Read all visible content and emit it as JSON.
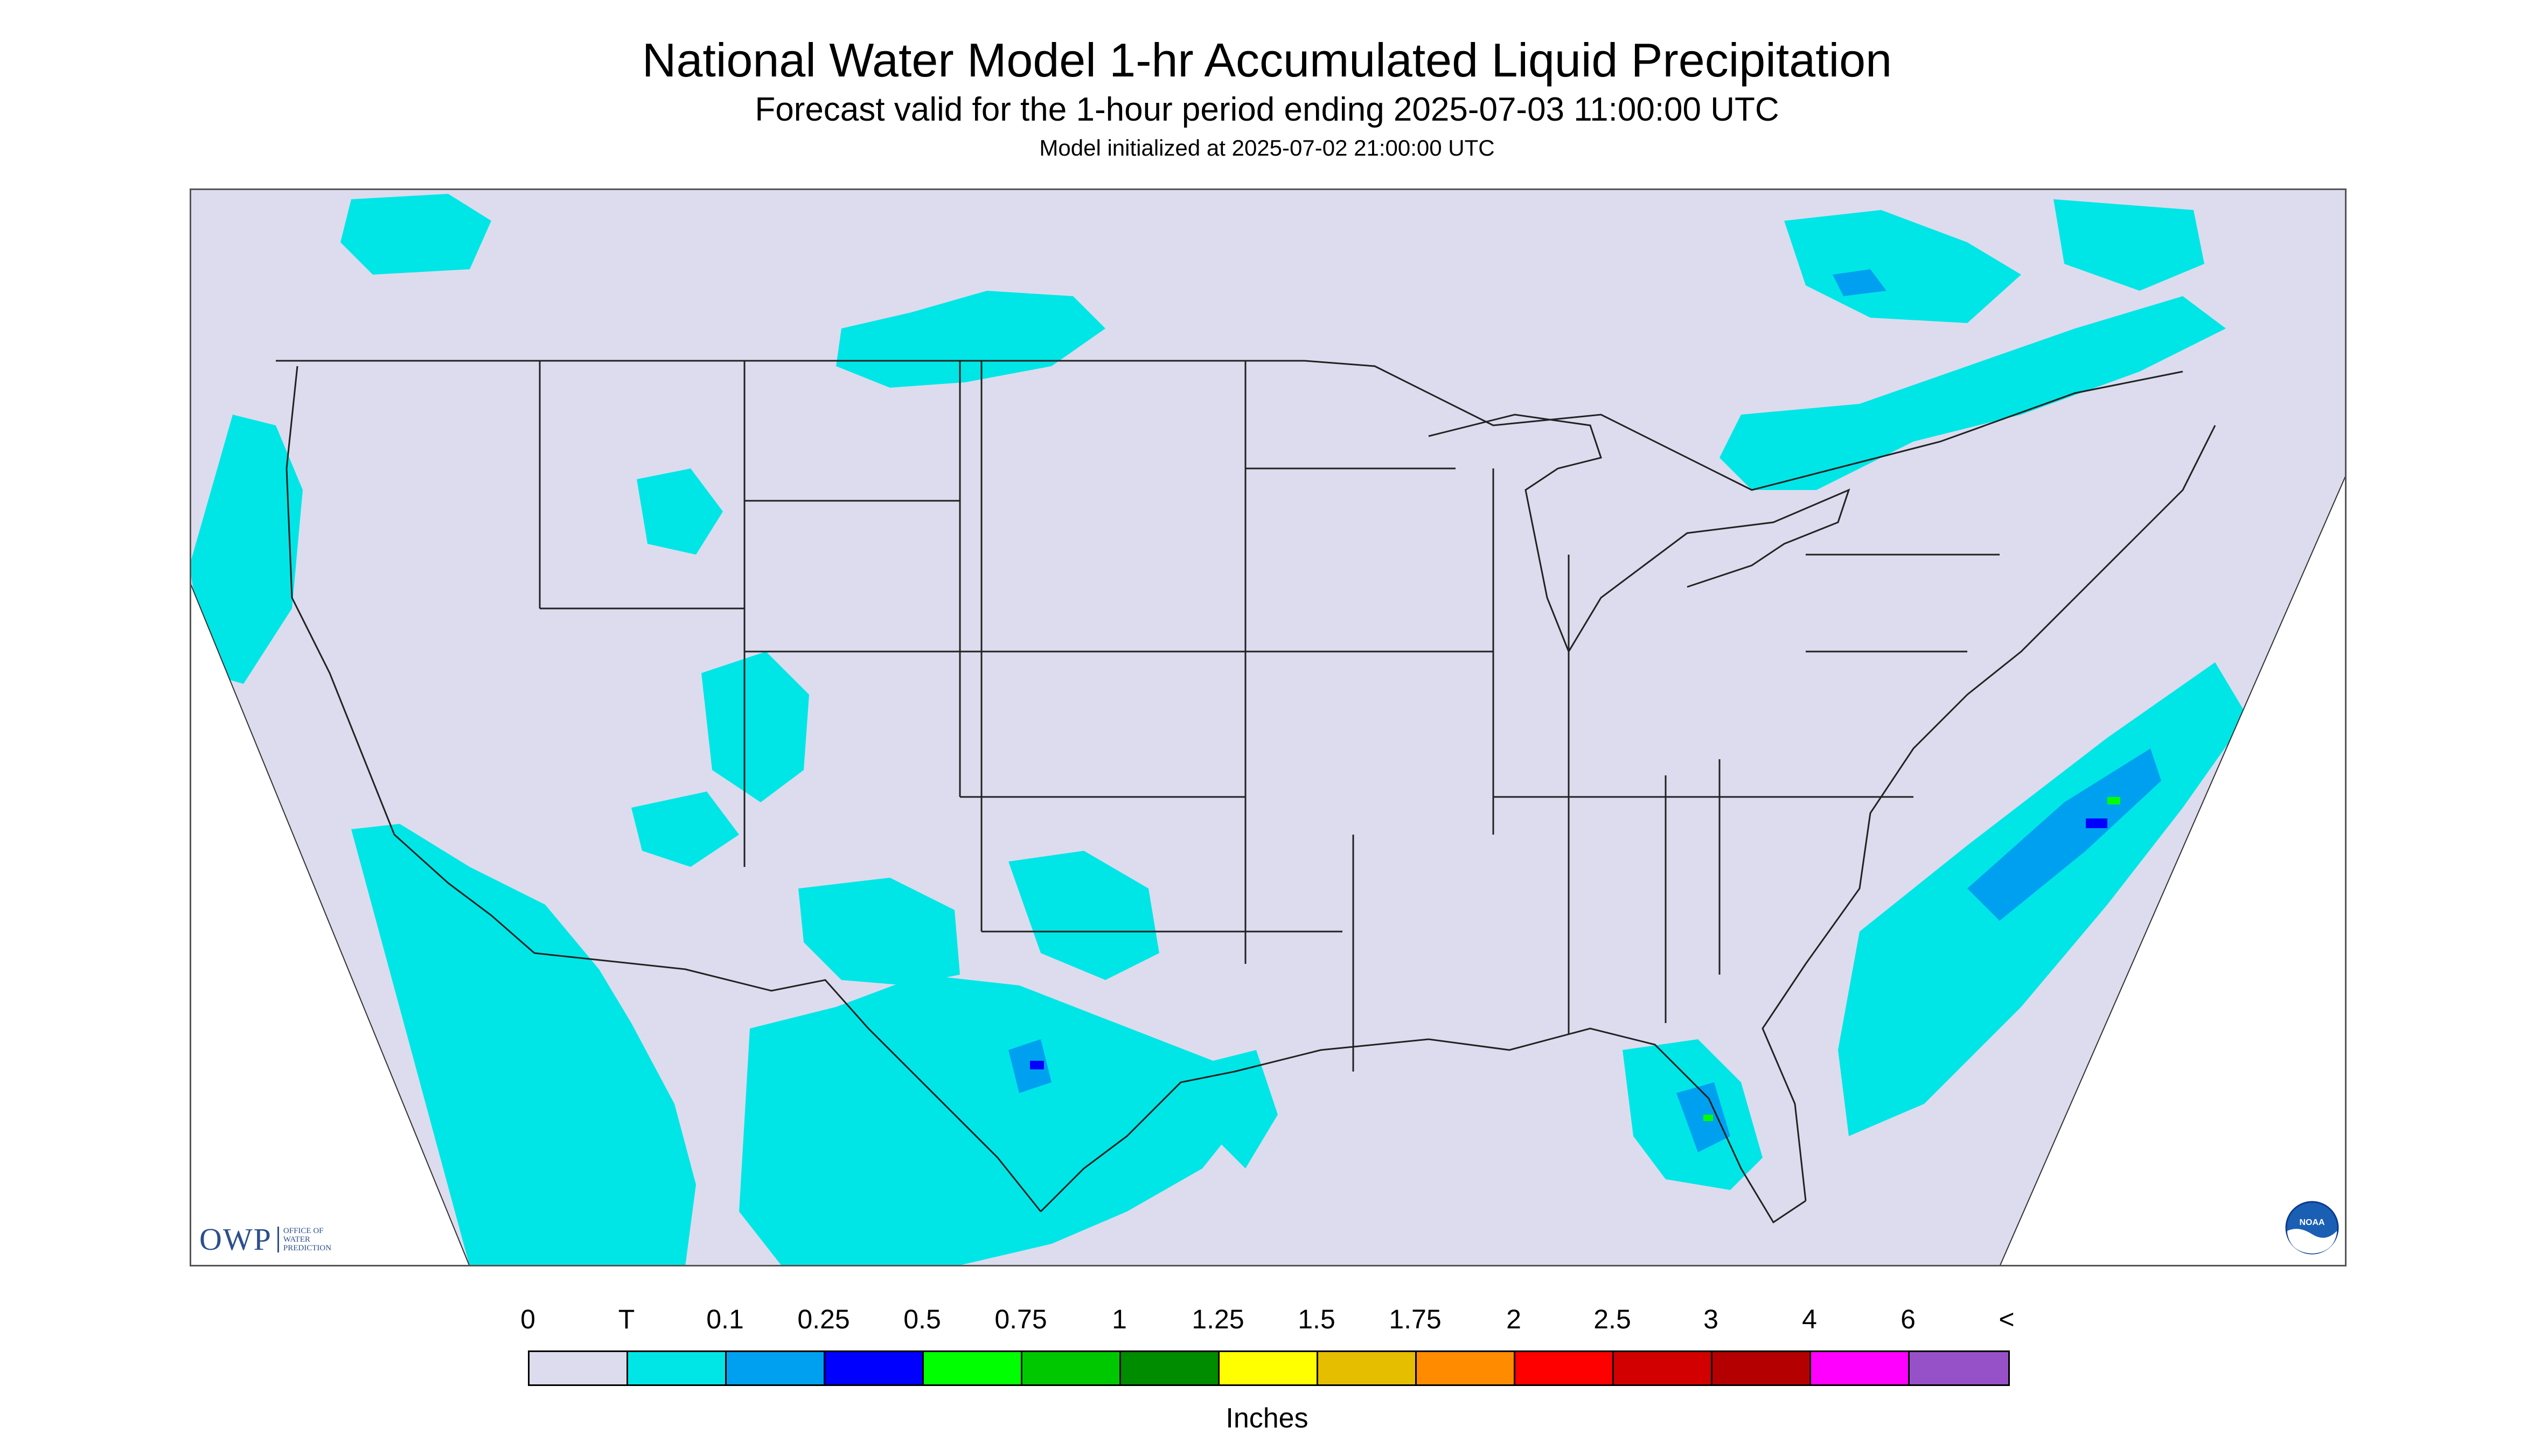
{
  "header": {
    "title": "National Water Model 1-hr Accumulated Liquid Precipitation",
    "subtitle": "Forecast valid for the 1-hour period ending 2025-07-03 11:00:00 UTC",
    "init": "Model initialized at 2025-07-02 21:00:00 UTC"
  },
  "map": {
    "background_color": "#dcdcee",
    "line_color": "#222222",
    "no_data_color": "#ffffff"
  },
  "logos": {
    "owp_letters": "OWP",
    "owp_sub": [
      "OFFICE OF",
      "WATER",
      "PREDICTION"
    ],
    "noaa_text": "NOAA"
  },
  "legend": {
    "labels": [
      "0",
      "T",
      "0.1",
      "0.25",
      "0.5",
      "0.75",
      "1",
      "1.25",
      "1.5",
      "1.75",
      "2",
      "2.5",
      "3",
      "4",
      "6",
      "<"
    ],
    "colors": [
      "#dcdcee",
      "#00e6e6",
      "#00a0f0",
      "#0000ff",
      "#00ff00",
      "#00c800",
      "#008c00",
      "#ffff00",
      "#e6be00",
      "#ff8c00",
      "#ff0000",
      "#d20000",
      "#b40000",
      "#ff00ff",
      "#9650c8"
    ],
    "units": "Inches"
  }
}
